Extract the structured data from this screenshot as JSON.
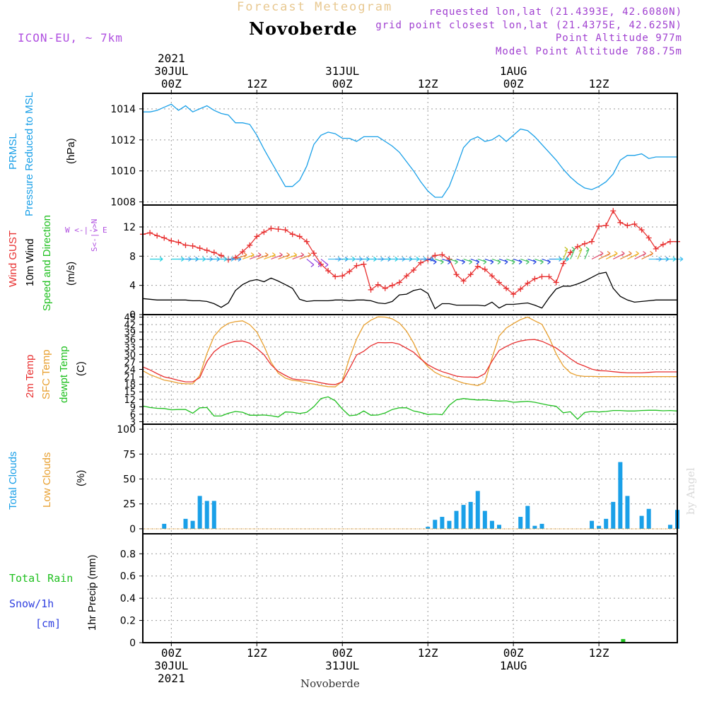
{
  "header": {
    "title": "Forecast Meteogram",
    "location": "Novoberde",
    "model": "ICON-EU, ~ 7km",
    "requested": "requested lon,lat (21.4393E, 42.6080N)",
    "grid_point": "grid point closest lon,lat (21.4375E, 42.625N)",
    "point_altitude": "Point Altitude 977m",
    "model_altitude": "Model Point Altitude 788.75m"
  },
  "footer": {
    "location": "Novoberde"
  },
  "credit": "by Angel",
  "time_axis": {
    "start_hour": -4,
    "end_hour": 71,
    "top_ticks": [
      {
        "hour": 0,
        "lines": [
          "2021",
          "30JUL",
          "00Z"
        ]
      },
      {
        "hour": 12,
        "lines": [
          "12Z"
        ]
      },
      {
        "hour": 24,
        "lines": [
          "31JUL",
          "00Z"
        ]
      },
      {
        "hour": 36,
        "lines": [
          "12Z"
        ]
      },
      {
        "hour": 48,
        "lines": [
          "1AUG",
          "00Z"
        ]
      },
      {
        "hour": 60,
        "lines": [
          "12Z"
        ]
      }
    ],
    "bottom_ticks": [
      {
        "hour": 0,
        "lines": [
          "00Z",
          "30JUL",
          "2021"
        ]
      },
      {
        "hour": 12,
        "lines": [
          "12Z"
        ]
      },
      {
        "hour": 24,
        "lines": [
          "00Z",
          "31JUL"
        ]
      },
      {
        "hour": 36,
        "lines": [
          "12Z"
        ]
      },
      {
        "hour": 48,
        "lines": [
          "00Z",
          "1AUG"
        ]
      },
      {
        "hour": 60,
        "lines": [
          "12Z"
        ]
      }
    ]
  },
  "panels": {
    "pressure": {
      "labels": [
        {
          "text": "PRMSL",
          "color": "#1aa0e8"
        },
        {
          "text": "Pressure Reduced to MSL",
          "color": "#1aa0e8"
        },
        {
          "text": "(hPa)",
          "color": "#000000"
        }
      ],
      "ticks": [
        "1008",
        "1010",
        "1012",
        "1014"
      ]
    },
    "wind": {
      "labels": [
        {
          "text": "Wind GUST",
          "color": "#e83030"
        },
        {
          "text": "10m Wind",
          "color": "#000000"
        },
        {
          "text": "Speed and Direction",
          "color": "#20c020"
        },
        {
          "text": "(m/s)",
          "color": "#000000"
        }
      ],
      "compass_ns": "S<-|->N",
      "compass_we": "W <-|-> E",
      "ticks": [
        "0",
        "4",
        "8",
        "12"
      ]
    },
    "temperature": {
      "labels": [
        {
          "text": "2m Temp",
          "color": "#e83030"
        },
        {
          "text": "SFC Temp",
          "color": "#e8a030"
        },
        {
          "text": "dewpt Temp",
          "color": "#20c020"
        },
        {
          "text": "(C)",
          "color": "#000000"
        }
      ],
      "ticks": [
        "3",
        "6",
        "9",
        "12",
        "15",
        "18",
        "21",
        "24",
        "27",
        "30",
        "33",
        "36",
        "39",
        "42",
        "45"
      ]
    },
    "clouds": {
      "labels": [
        {
          "text": "Total Clouds",
          "color": "#1aa0e8"
        },
        {
          "text": "Low Clouds",
          "color": "#e8a030"
        },
        {
          "text": "(%)",
          "color": "#000000"
        }
      ],
      "ticks": [
        "0",
        "25",
        "50",
        "75",
        "100"
      ]
    },
    "precip": {
      "left_labels": [
        {
          "text": "Total  Rain",
          "color": "#20c020"
        },
        {
          "text": "Snow/1h",
          "color": "#3040e0"
        },
        {
          "text": "[cm]",
          "color": "#3040e0"
        }
      ],
      "axis_label": "1hr Precip (mm)",
      "ticks": [
        "0",
        "0.2",
        "0.4",
        "0.6",
        "0.8"
      ]
    }
  },
  "colors": {
    "pressure": "#1aa0e8",
    "gust": "#e83030",
    "wind": "#000000",
    "t2m": "#e83030",
    "tsfc": "#e8a030",
    "dewpoint": "#20c020",
    "total_clouds": "#1aa0e8",
    "low_clouds": "#e8a030",
    "rain": "#20c020",
    "snow": "#3040e0"
  },
  "chart_data": [
    {
      "type": "line",
      "name": "PRMSL (hPa)",
      "ylim": [
        1007.8,
        1015
      ],
      "x": [
        -4,
        -3,
        -2,
        -1,
        0,
        1,
        2,
        3,
        4,
        5,
        6,
        7,
        8,
        9,
        10,
        11,
        12,
        13,
        14,
        15,
        16,
        17,
        18,
        19,
        20,
        21,
        22,
        23,
        24,
        25,
        26,
        27,
        28,
        29,
        30,
        31,
        32,
        33,
        34,
        35,
        36,
        37,
        38,
        39,
        40,
        41,
        42,
        43,
        44,
        45,
        46,
        47,
        48,
        49,
        50,
        51,
        52,
        53,
        54,
        55,
        56,
        57,
        58,
        59,
        60,
        61,
        62,
        63,
        64,
        65,
        66,
        67,
        68,
        69,
        70,
        71
      ],
      "y": [
        1013.8,
        1013.8,
        1013.9,
        1014.1,
        1014.3,
        1013.9,
        1014.2,
        1013.8,
        1014.0,
        1014.2,
        1013.9,
        1013.7,
        1013.6,
        1013.1,
        1013.1,
        1013.0,
        1012.3,
        1011.4,
        1010.6,
        1009.8,
        1009.0,
        1009.0,
        1009.4,
        1010.3,
        1011.7,
        1012.3,
        1012.5,
        1012.4,
        1012.1,
        1012.1,
        1011.9,
        1012.2,
        1012.2,
        1012.2,
        1011.9,
        1011.6,
        1011.2,
        1010.6,
        1010.0,
        1009.3,
        1008.7,
        1008.3,
        1008.3,
        1009.0,
        1010.2,
        1011.5,
        1012.0,
        1012.2,
        1011.9,
        1012.0,
        1012.3,
        1011.9,
        1012.3,
        1012.7,
        1012.6,
        1012.2,
        1011.7,
        1011.2,
        1010.7,
        1010.1,
        1009.6,
        1009.2,
        1008.9,
        1008.8,
        1009.0,
        1009.3,
        1009.8,
        1010.7,
        1011.0,
        1011.0,
        1011.1,
        1010.8,
        1010.9,
        1010.9,
        1010.9,
        1010.9
      ]
    },
    {
      "type": "line",
      "name": "Wind GUST (m/s)",
      "ylim": [
        0,
        15
      ],
      "x": [
        -4,
        -3,
        -2,
        -1,
        0,
        1,
        2,
        3,
        4,
        5,
        6,
        7,
        8,
        9,
        10,
        11,
        12,
        13,
        14,
        15,
        16,
        17,
        18,
        19,
        20,
        21,
        22,
        23,
        24,
        25,
        26,
        27,
        28,
        29,
        30,
        31,
        32,
        33,
        34,
        35,
        36,
        37,
        38,
        39,
        40,
        41,
        42,
        43,
        44,
        45,
        46,
        47,
        48,
        49,
        50,
        51,
        52,
        53,
        54,
        55,
        56,
        57,
        58,
        59,
        60,
        61,
        62,
        63,
        64,
        65,
        66,
        67,
        68,
        69,
        70,
        71
      ],
      "y": [
        11.0,
        11.2,
        10.8,
        10.5,
        10.1,
        9.9,
        9.5,
        9.4,
        9.1,
        8.8,
        8.5,
        8.1,
        7.5,
        7.8,
        8.6,
        9.5,
        10.7,
        11.3,
        11.8,
        11.7,
        11.6,
        11.0,
        10.7,
        10.0,
        8.4,
        6.9,
        6.0,
        5.2,
        5.3,
        5.9,
        6.7,
        6.9,
        3.4,
        4.1,
        3.6,
        4.0,
        4.4,
        5.3,
        6.1,
        7.1,
        7.5,
        8.1,
        8.2,
        7.6,
        5.5,
        4.6,
        5.5,
        6.6,
        6.2,
        5.3,
        4.4,
        3.6,
        2.8,
        3.5,
        4.3,
        4.9,
        5.2,
        5.2,
        4.4,
        7.0,
        8.5,
        9.3,
        9.7,
        10.0,
        12.1,
        12.2,
        14.2,
        12.6,
        12.2,
        12.4,
        11.6,
        10.5,
        9.0,
        9.6,
        10.0,
        10.0
      ]
    },
    {
      "type": "line",
      "name": "10m Wind (m/s)",
      "ylim": [
        0,
        15
      ],
      "x": [
        -4,
        -3,
        -2,
        -1,
        0,
        1,
        2,
        3,
        4,
        5,
        6,
        7,
        8,
        9,
        10,
        11,
        12,
        13,
        14,
        15,
        16,
        17,
        18,
        19,
        20,
        21,
        22,
        23,
        24,
        25,
        26,
        27,
        28,
        29,
        30,
        31,
        32,
        33,
        34,
        35,
        36,
        37,
        38,
        39,
        40,
        41,
        42,
        43,
        44,
        45,
        46,
        47,
        48,
        49,
        50,
        51,
        52,
        53,
        54,
        55,
        56,
        57,
        58,
        59,
        60,
        61,
        62,
        63,
        64,
        65,
        66,
        67,
        68,
        69,
        70,
        71
      ],
      "y": [
        2.2,
        2.1,
        2.0,
        2.0,
        2.0,
        2.0,
        2.0,
        1.9,
        1.9,
        1.8,
        1.5,
        1.0,
        1.6,
        3.3,
        4.1,
        4.6,
        4.8,
        4.5,
        5.0,
        4.6,
        4.1,
        3.6,
        2.1,
        1.8,
        1.9,
        1.9,
        1.9,
        2.0,
        2.0,
        1.9,
        2.0,
        2.0,
        1.9,
        1.6,
        1.5,
        1.8,
        2.7,
        2.8,
        3.3,
        3.5,
        2.9,
        0.8,
        1.5,
        1.5,
        1.3,
        1.3,
        1.3,
        1.3,
        1.2,
        1.7,
        0.9,
        1.4,
        1.4,
        1.5,
        1.6,
        1.3,
        0.9,
        2.3,
        3.5,
        3.9,
        3.9,
        4.2,
        4.6,
        5.1,
        5.6,
        5.8,
        3.6,
        2.5,
        2.0,
        1.7,
        1.8,
        1.9,
        2.0,
        2.0,
        2.0,
        2.0
      ]
    },
    {
      "type": "line",
      "name": "2m Temp (C)",
      "ylim": [
        2,
        46
      ],
      "x": [
        -4,
        -3,
        -2,
        -1,
        0,
        1,
        2,
        3,
        4,
        5,
        6,
        7,
        8,
        9,
        10,
        11,
        12,
        13,
        14,
        15,
        16,
        17,
        18,
        19,
        20,
        21,
        22,
        23,
        24,
        25,
        26,
        27,
        28,
        29,
        30,
        31,
        32,
        33,
        34,
        35,
        36,
        37,
        38,
        39,
        40,
        41,
        42,
        43,
        44,
        45,
        46,
        47,
        48,
        49,
        50,
        51,
        52,
        53,
        54,
        55,
        56,
        57,
        58,
        59,
        60,
        61,
        62,
        63,
        64,
        65,
        66,
        67,
        68,
        69,
        70,
        71
      ],
      "y": [
        25.0,
        23.8,
        22.3,
        21.0,
        20.4,
        19.6,
        19.0,
        19.0,
        20.7,
        27.2,
        31.1,
        33.3,
        34.5,
        35.3,
        35.4,
        34.5,
        32.4,
        29.9,
        25.9,
        23.2,
        21.6,
        20.2,
        19.8,
        19.7,
        19.3,
        18.6,
        18.1,
        17.9,
        19.0,
        24.3,
        29.8,
        31.3,
        33.5,
        34.8,
        34.7,
        34.8,
        34.1,
        32.5,
        30.9,
        28.2,
        25.9,
        24.3,
        23.1,
        22.2,
        21.3,
        21.0,
        20.9,
        20.8,
        22.3,
        27.3,
        31.6,
        33.2,
        34.6,
        35.4,
        35.9,
        36.0,
        35.3,
        34.0,
        32.6,
        30.5,
        28.3,
        26.4,
        25.3,
        24.1,
        23.5,
        23.4,
        23.1,
        22.8,
        22.6,
        22.6,
        22.6,
        22.8,
        23.0,
        23.0,
        23.0,
        23.0
      ]
    },
    {
      "type": "line",
      "name": "SFC Temp (C)",
      "ylim": [
        2,
        46
      ],
      "x": [
        -4,
        -3,
        -2,
        -1,
        0,
        1,
        2,
        3,
        4,
        5,
        6,
        7,
        8,
        9,
        10,
        11,
        12,
        13,
        14,
        15,
        16,
        17,
        18,
        19,
        20,
        21,
        22,
        23,
        24,
        25,
        26,
        27,
        28,
        29,
        30,
        31,
        32,
        33,
        34,
        35,
        36,
        37,
        38,
        39,
        40,
        41,
        42,
        43,
        44,
        45,
        46,
        47,
        48,
        49,
        50,
        51,
        52,
        53,
        54,
        55,
        56,
        57,
        58,
        59,
        60,
        61,
        62,
        63,
        64,
        65,
        66,
        67,
        68,
        69,
        70,
        71
      ],
      "y": [
        23.5,
        21.9,
        20.8,
        19.7,
        19.2,
        18.5,
        18.2,
        18.2,
        21.6,
        30.4,
        37.3,
        40.6,
        42.5,
        43.2,
        43.5,
        42.0,
        39.0,
        33.4,
        26.9,
        22.5,
        20.5,
        19.6,
        19.3,
        18.5,
        18.1,
        17.5,
        17.1,
        17.0,
        19.3,
        28.5,
        36.2,
        41.7,
        43.8,
        45.1,
        45.0,
        44.3,
        42.6,
        39.4,
        34.6,
        28.5,
        25.1,
        22.8,
        21.4,
        20.6,
        19.5,
        18.5,
        18.0,
        17.5,
        18.8,
        28.5,
        37.4,
        40.6,
        42.4,
        44.0,
        45.0,
        43.5,
        42.1,
        36.8,
        30.3,
        25.4,
        22.6,
        21.5,
        21.2,
        21.2,
        21.1,
        21.1,
        21.1,
        21.1,
        21.1,
        21.1,
        21.1,
        21.1,
        21.1,
        21.1,
        21.1,
        21.1
      ]
    },
    {
      "type": "line",
      "name": "dewpt Temp (C)",
      "ylim": [
        2,
        46
      ],
      "x": [
        -4,
        -3,
        -2,
        -1,
        0,
        1,
        2,
        3,
        4,
        5,
        6,
        7,
        8,
        9,
        10,
        11,
        12,
        13,
        14,
        15,
        16,
        17,
        18,
        19,
        20,
        21,
        22,
        23,
        24,
        25,
        26,
        27,
        28,
        29,
        30,
        31,
        32,
        33,
        34,
        35,
        36,
        37,
        38,
        39,
        40,
        41,
        42,
        43,
        44,
        45,
        46,
        47,
        48,
        49,
        50,
        51,
        52,
        53,
        54,
        55,
        56,
        57,
        58,
        59,
        60,
        61,
        62,
        63,
        64,
        65,
        66,
        67,
        68,
        69,
        70,
        71
      ],
      "y": [
        9.3,
        8.7,
        8.4,
        8.3,
        7.8,
        7.9,
        7.9,
        6.4,
        8.6,
        8.7,
        5.3,
        5.3,
        6.4,
        7.1,
        6.8,
        5.6,
        5.6,
        5.7,
        5.4,
        4.9,
        6.9,
        6.8,
        6.3,
        6.8,
        9.0,
        12.3,
        13.0,
        11.4,
        8.1,
        5.4,
        5.7,
        7.3,
        5.6,
        5.7,
        6.5,
        7.9,
        8.6,
        8.6,
        7.3,
        6.7,
        5.9,
        6.1,
        5.8,
        9.6,
        11.8,
        12.3,
        12.0,
        11.7,
        11.8,
        11.5,
        11.3,
        11.4,
        10.8,
        11.0,
        11.2,
        10.8,
        10.2,
        9.6,
        9.2,
        6.6,
        7.0,
        4.0,
        6.7,
        7.1,
        6.9,
        7.1,
        7.5,
        7.5,
        7.3,
        7.3,
        7.5,
        7.6,
        7.6,
        7.4,
        7.5,
        7.3
      ]
    },
    {
      "type": "bar",
      "name": "Total Clouds (%)",
      "ylim": [
        -5,
        105
      ],
      "x": [
        -4,
        -3,
        -2,
        -1,
        0,
        1,
        2,
        3,
        4,
        5,
        6,
        7,
        8,
        9,
        10,
        11,
        12,
        13,
        14,
        15,
        16,
        17,
        18,
        19,
        20,
        21,
        22,
        23,
        24,
        25,
        26,
        27,
        28,
        29,
        30,
        31,
        32,
        33,
        34,
        35,
        36,
        37,
        38,
        39,
        40,
        41,
        42,
        43,
        44,
        45,
        46,
        47,
        48,
        49,
        50,
        51,
        52,
        53,
        54,
        55,
        56,
        57,
        58,
        59,
        60,
        61,
        62,
        63,
        64,
        65,
        66,
        67,
        68,
        69,
        70,
        71
      ],
      "values": [
        0,
        0,
        0,
        5,
        0,
        0,
        10,
        8,
        33,
        28,
        28,
        0,
        0,
        0,
        0,
        0,
        0,
        0,
        0,
        0,
        0,
        0,
        0,
        0,
        0,
        0,
        0,
        0,
        0,
        0,
        0,
        0,
        0,
        0,
        0,
        0,
        0,
        0,
        0,
        0,
        2,
        9,
        12,
        8,
        18,
        24,
        27,
        38,
        18,
        8,
        4,
        0,
        0,
        12,
        23,
        3,
        5,
        0,
        0,
        0,
        0,
        0,
        0,
        8,
        3,
        10,
        27,
        67,
        33,
        0,
        13,
        20,
        0,
        0,
        4,
        19
      ]
    },
    {
      "type": "bar",
      "name": "1hr Precip (mm)",
      "ylim": [
        0,
        0.98
      ],
      "x": [
        63.4
      ],
      "values": [
        0.02
      ]
    }
  ]
}
